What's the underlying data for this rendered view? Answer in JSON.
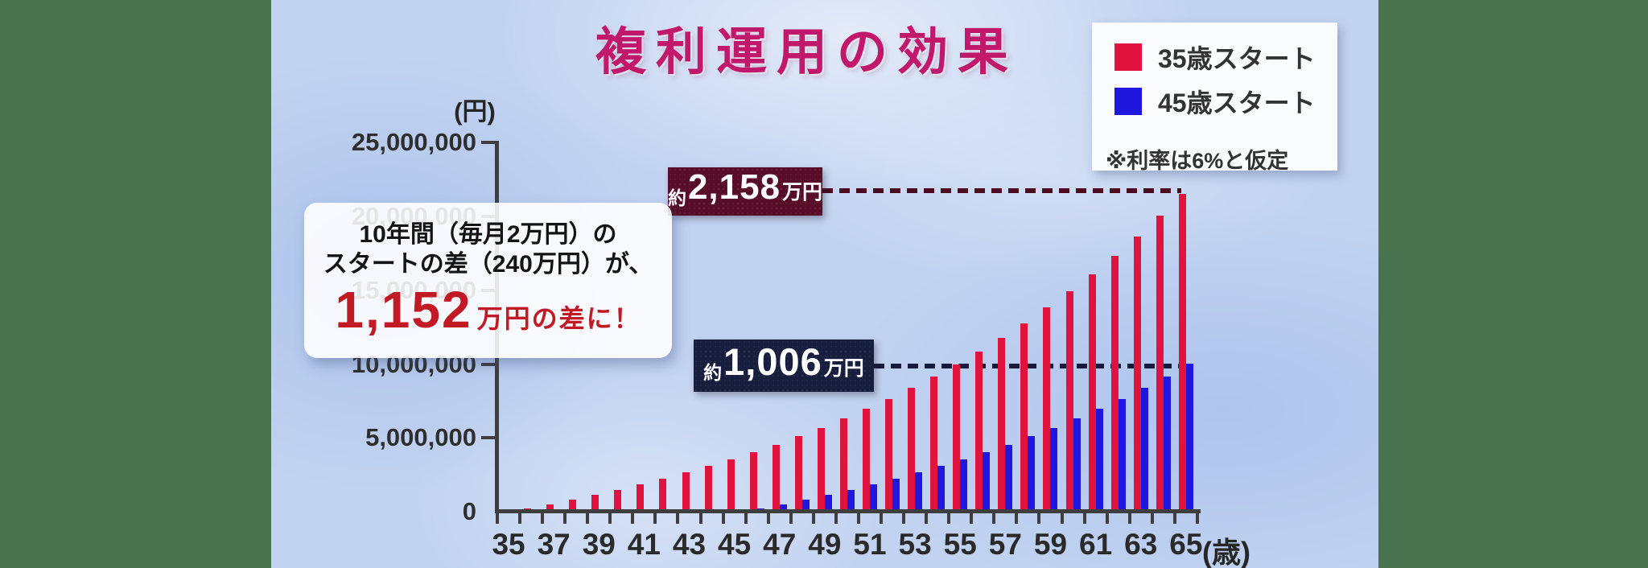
{
  "title": "複利運用の効果",
  "legend": {
    "items": [
      {
        "label": "35歳スタート",
        "color": "#E0123E"
      },
      {
        "label": "45歳スタート",
        "color": "#1F17DE"
      }
    ],
    "note": "※利率は6%と仮定"
  },
  "callout": {
    "line1": "10年間（毎月2万円）の",
    "line2": "スタートの差（240万円）が、",
    "highlight_value": "1,152",
    "highlight_suffix": "万円の差に！"
  },
  "annotation_red": {
    "prefix": "約",
    "value": "2,158",
    "suffix": "万円"
  },
  "annotation_blue": {
    "prefix": "約",
    "value": "1,006",
    "suffix": "万円"
  },
  "axis": {
    "y_unit": "(円)",
    "x_unit": "(歳)",
    "y_tick_labels": [
      "0",
      "5,000,000",
      "10,000,000",
      "15,000,000",
      "20,000,000",
      "25,000,000"
    ],
    "x_tick_labels": [
      "35",
      "37",
      "39",
      "41",
      "43",
      "45",
      "47",
      "49",
      "51",
      "53",
      "55",
      "57",
      "59",
      "61",
      "63",
      "65"
    ]
  },
  "colors": {
    "title": "#C1186C",
    "highlight": "#C21A24",
    "box_red_bg": "#570C27",
    "box_blue_bg": "#171D3D",
    "dash_red": "#4B0A20",
    "dash_blue": "#161B3C",
    "bar_red": "#E0123E",
    "bar_blue": "#1F17DE",
    "background_blue": "#C2D3F1",
    "side_margin_green": "#49724E"
  },
  "chart_data": {
    "type": "bar",
    "title": "複利運用の効果",
    "xlabel": "(歳)",
    "ylabel": "(円)",
    "ylim": [
      0,
      25000000
    ],
    "y_tick_step": 5000000,
    "grid": false,
    "legend_position": "top-right",
    "x_label_interval": 2,
    "categories": [
      35,
      36,
      37,
      38,
      39,
      40,
      41,
      42,
      43,
      44,
      45,
      46,
      47,
      48,
      49,
      50,
      51,
      52,
      53,
      54,
      55,
      56,
      57,
      58,
      59,
      60,
      61,
      62,
      63,
      64,
      65
    ],
    "series": [
      {
        "name": "35歳スタート",
        "color": "#E0123E",
        "values": [
          0,
          270000,
          560000,
          870000,
          1190000,
          1540000,
          1900000,
          2290000,
          2700000,
          3140000,
          3600000,
          4090000,
          4600000,
          5150000,
          5740000,
          6350000,
          7010000,
          7700000,
          8440000,
          9220000,
          10040000,
          10920000,
          11840000,
          12830000,
          13870000,
          14980000,
          16150000,
          17390000,
          18710000,
          20100000,
          21580000
        ]
      },
      {
        "name": "45歳スタート",
        "color": "#1F17DE",
        "values": [
          0,
          0,
          0,
          0,
          0,
          0,
          0,
          0,
          0,
          0,
          0,
          270000,
          560000,
          870000,
          1190000,
          1540000,
          1900000,
          2290000,
          2700000,
          3140000,
          3600000,
          4090000,
          4600000,
          5150000,
          5740000,
          6350000,
          7010000,
          7700000,
          8440000,
          9220000,
          10060000
        ]
      }
    ],
    "annotations": [
      {
        "target": "35歳スタート at 65",
        "label": "約2,158万円",
        "value": 21580000
      },
      {
        "target": "45歳スタート at 65",
        "label": "約1,006万円",
        "value": 10060000
      }
    ]
  }
}
